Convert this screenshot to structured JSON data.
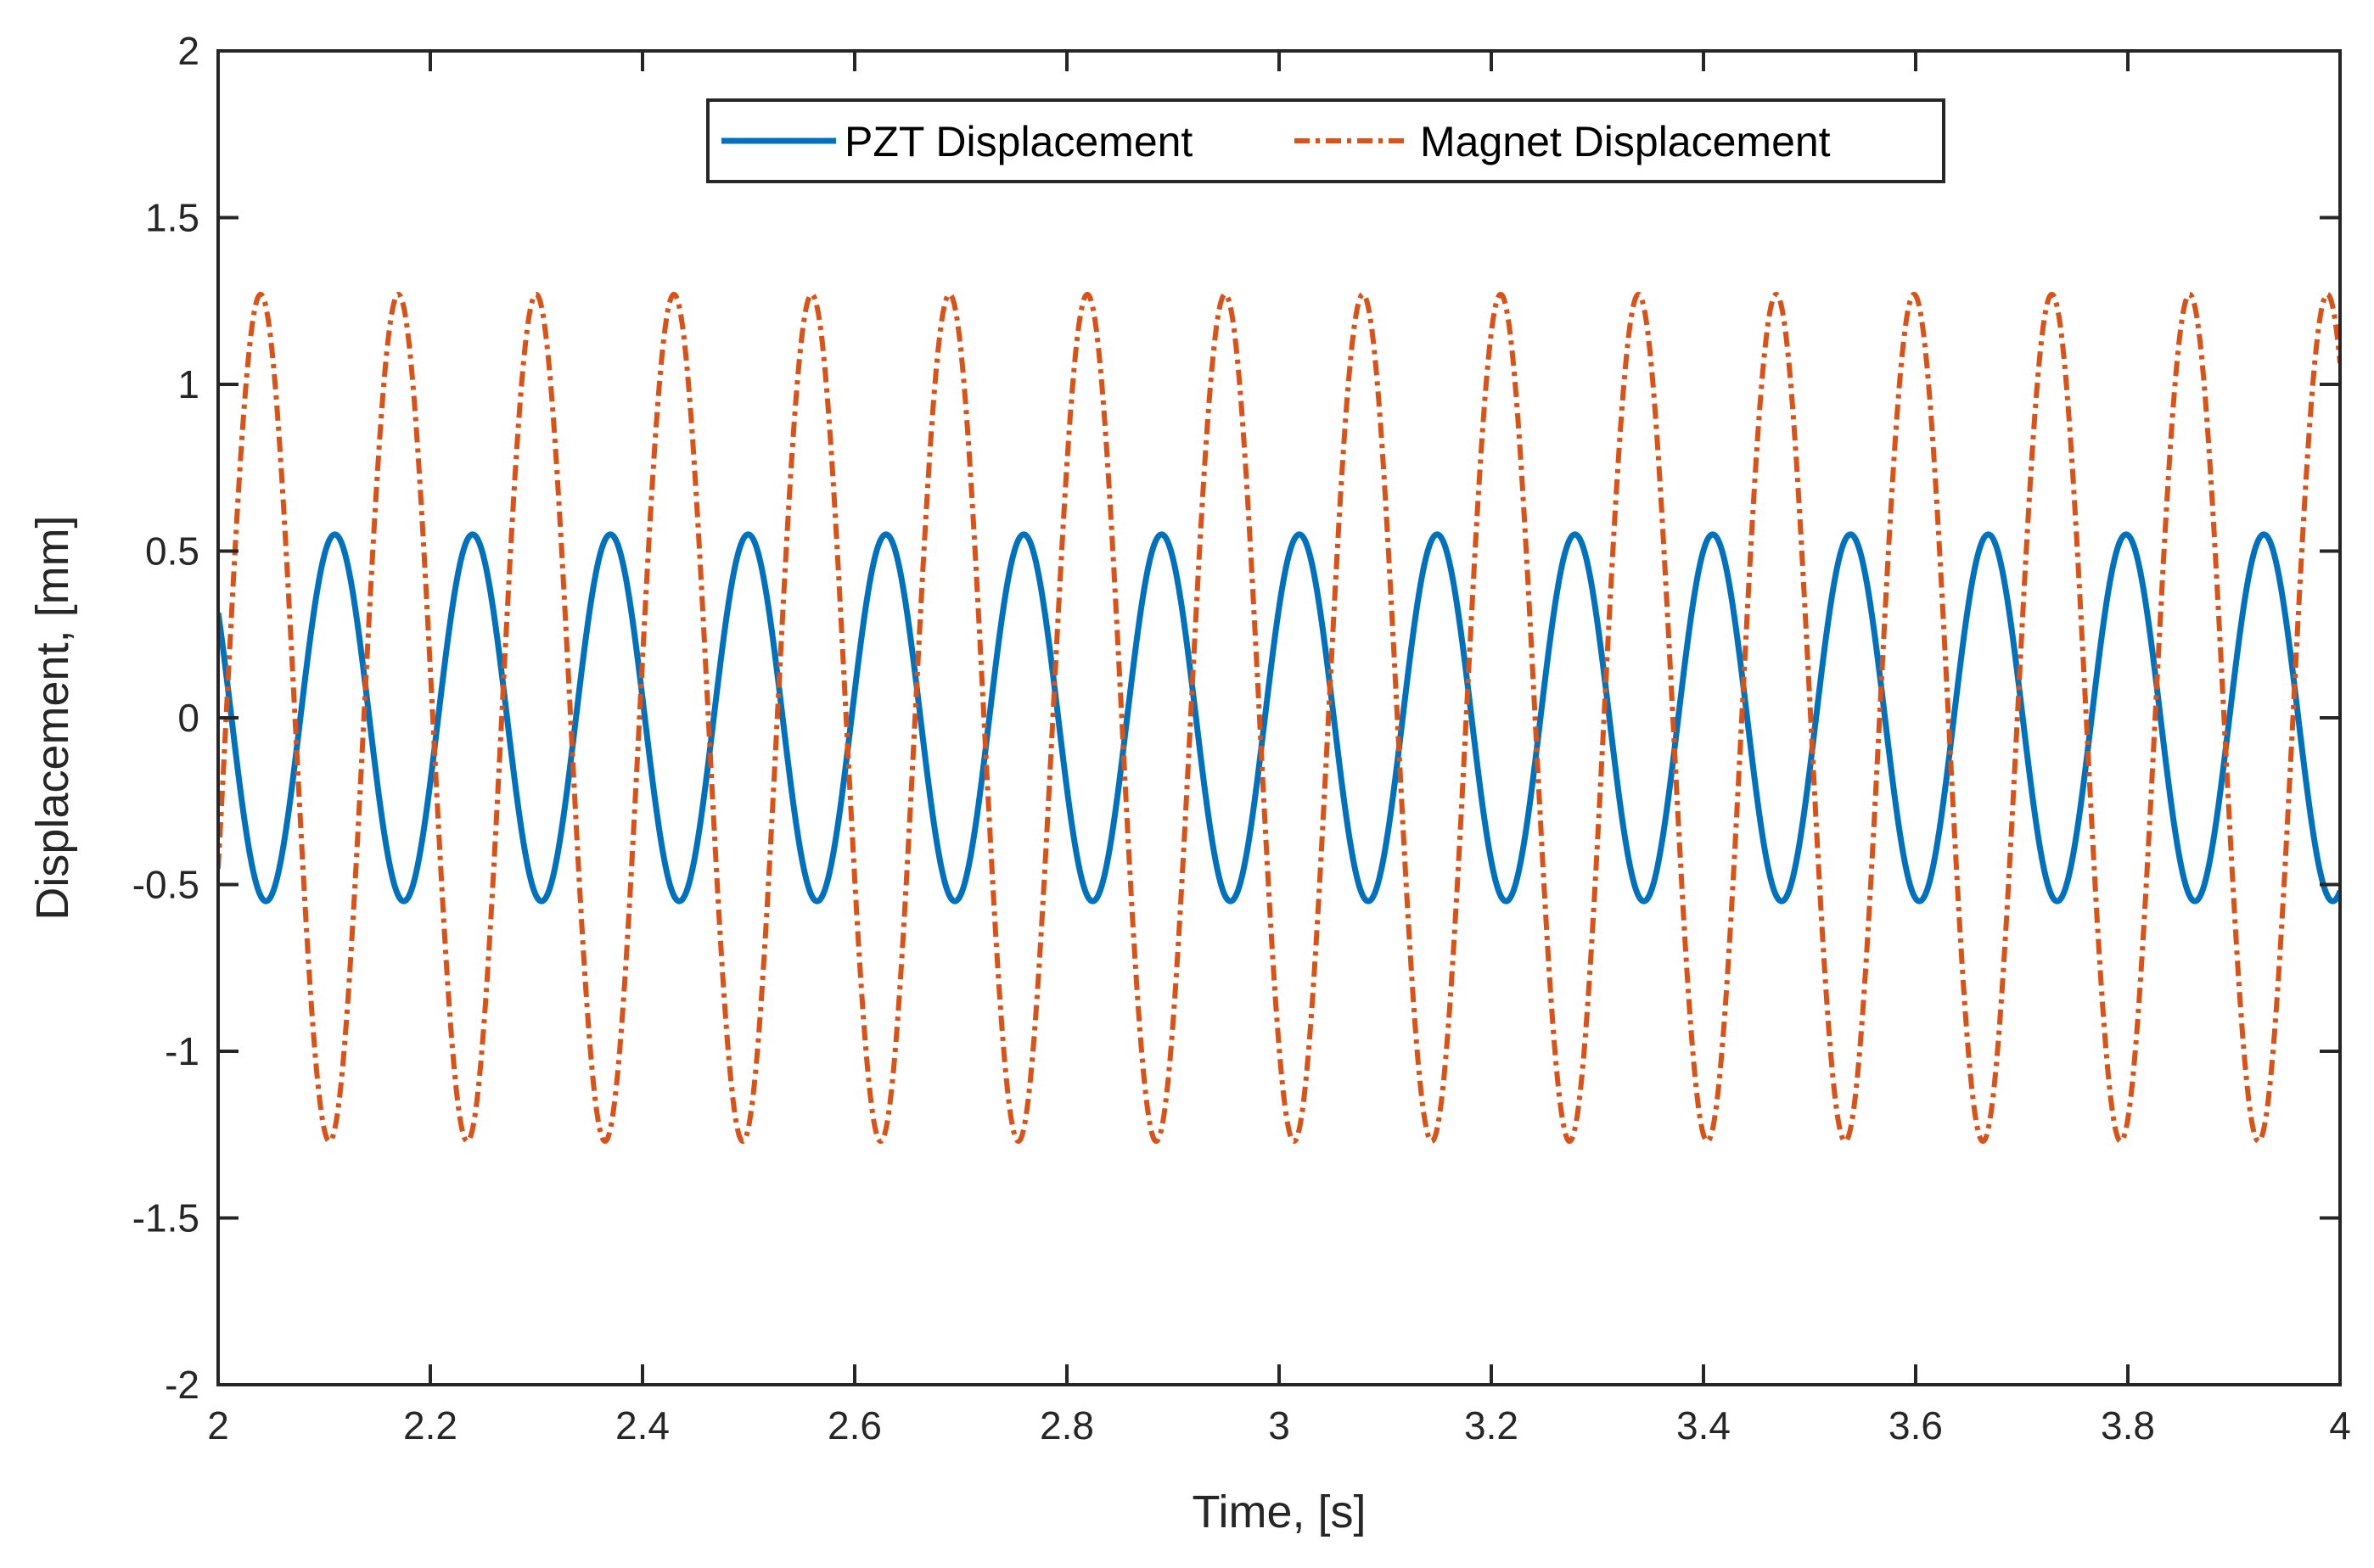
{
  "chart_data": {
    "type": "line",
    "title": "",
    "xlabel": "Time, [s]",
    "ylabel": "Displacement, [mm]",
    "xlim": [
      2,
      4
    ],
    "ylim": [
      -2,
      2
    ],
    "xticks": [
      2,
      2.2,
      2.4,
      2.6,
      2.8,
      3,
      3.2,
      3.4,
      3.6,
      3.8,
      4
    ],
    "xtick_labels": [
      "2",
      "2.2",
      "2.4",
      "2.6",
      "2.8",
      "3",
      "3.2",
      "3.4",
      "3.6",
      "3.8",
      "4"
    ],
    "yticks": [
      -2,
      -1.5,
      -1,
      -0.5,
      0,
      0.5,
      1,
      1.5,
      2
    ],
    "ytick_labels": [
      "-2",
      "-1.5",
      "-1",
      "-0.5",
      "0",
      "0.5",
      "1",
      "1.5",
      "2"
    ],
    "grid": false,
    "legend_position": "top-center",
    "series": [
      {
        "name": "PZT Displacement",
        "color": "#0072BD",
        "line_style": "solid",
        "amplitude": 0.55,
        "frequency_hz": 7.7,
        "peak_time_s": 2.11,
        "unit": "mm"
      },
      {
        "name": "Magnet Displacement",
        "color": "#D95319",
        "line_style": "dash-dot",
        "amplitude": 1.27,
        "frequency_hz": 7.7,
        "peak_time_s": 2.04,
        "unit": "mm"
      }
    ]
  }
}
